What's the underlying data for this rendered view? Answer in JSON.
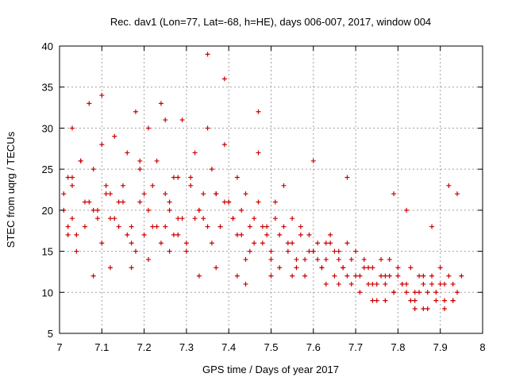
{
  "chart_data": {
    "type": "scatter",
    "title": "Rec. dav1 (Lon=77, Lat=-68, h=HE), days 006-007, 2017, window 004",
    "xlabel": "GPS time / Days of year 2017",
    "ylabel": "STEC from uqrg / TECUs",
    "xlim": [
      7,
      8
    ],
    "ylim": [
      5,
      40
    ],
    "xticks": [
      7,
      7.1,
      7.2,
      7.3,
      7.4,
      7.5,
      7.6,
      7.7,
      7.8,
      7.9,
      8
    ],
    "yticks": [
      5,
      10,
      15,
      20,
      25,
      30,
      35,
      40
    ],
    "xtick_labels": [
      "7",
      "7.1",
      "7.2",
      "7.3",
      "7.4",
      "7.5",
      "7.6",
      "7.7",
      "7.8",
      "7.9",
      "8"
    ],
    "ytick_labels": [
      "5",
      "10",
      "15",
      "20",
      "25",
      "30",
      "35",
      "40"
    ],
    "grid": true,
    "marker": "plus",
    "color": "#cc0000",
    "x": [
      7.01,
      7.01,
      7.02,
      7.02,
      7.03,
      7.03,
      7.04,
      7.05,
      7.06,
      7.07,
      7.08,
      7.09,
      7.1,
      7.11,
      7.12,
      7.13,
      7.14,
      7.15,
      7.16,
      7.17,
      7.18,
      7.19,
      7.2,
      7.21,
      7.22,
      7.23,
      7.24,
      7.25,
      7.26,
      7.27,
      7.28,
      7.29,
      7.3,
      7.31,
      7.32,
      7.33,
      7.34,
      7.35,
      7.36,
      7.37,
      7.38,
      7.39,
      7.4,
      7.41,
      7.42,
      7.43,
      7.44,
      7.45,
      7.46,
      7.47,
      7.48,
      7.49,
      7.5,
      7.51,
      7.52,
      7.53,
      7.54,
      7.55,
      7.56,
      7.57,
      7.58,
      7.59,
      7.6,
      7.61,
      7.62,
      7.63,
      7.64,
      7.65,
      7.66,
      7.67,
      7.68,
      7.69,
      7.7,
      7.71,
      7.72,
      7.73,
      7.74,
      7.75,
      7.76,
      7.77,
      7.78,
      7.79,
      7.8,
      7.81,
      7.82,
      7.83,
      7.84,
      7.85,
      7.86,
      7.87,
      7.88,
      7.89,
      7.9,
      7.91,
      7.92,
      7.93,
      7.94,
      7.95,
      7.02,
      7.04,
      7.06,
      7.08,
      7.1,
      7.12,
      7.14,
      7.16,
      7.18,
      7.2,
      7.22,
      7.24,
      7.26,
      7.28,
      7.3,
      7.32,
      7.34,
      7.36,
      7.38,
      7.4,
      7.42,
      7.44,
      7.46,
      7.48,
      7.5,
      7.52,
      7.54,
      7.56,
      7.58,
      7.6,
      7.62,
      7.64,
      7.66,
      7.68,
      7.7,
      7.72,
      7.74,
      7.76,
      7.78,
      7.8,
      7.82,
      7.84,
      7.86,
      7.88,
      7.9,
      7.92,
      7.94,
      7.03,
      7.05,
      7.07,
      7.09,
      7.11,
      7.13,
      7.15,
      7.17,
      7.19,
      7.21,
      7.23,
      7.25,
      7.27,
      7.29,
      7.31,
      7.33,
      7.35,
      7.37,
      7.39,
      7.41,
      7.43,
      7.45,
      7.47,
      7.49,
      7.51,
      7.53,
      7.55,
      7.57,
      7.59,
      7.61,
      7.63,
      7.65,
      7.67,
      7.69,
      7.71,
      7.73,
      7.75,
      7.77,
      7.79,
      7.81,
      7.83,
      7.85,
      7.87,
      7.89,
      7.91,
      7.93,
      7.03,
      7.1,
      7.19,
      7.25,
      7.28,
      7.35,
      7.39,
      7.47,
      7.6,
      7.68,
      7.79,
      7.82,
      7.88,
      7.12,
      7.21,
      7.33,
      7.44,
      7.55,
      7.66,
      7.77,
      7.86,
      7.93,
      7.08,
      7.17,
      7.26,
      7.37,
      7.42,
      7.5,
      7.63,
      7.74,
      7.84,
      7.91
    ],
    "y": [
      20,
      22,
      18,
      24,
      19,
      30,
      17,
      26,
      21,
      33,
      25,
      19,
      34,
      23,
      22,
      29,
      18,
      21,
      27,
      16,
      32,
      25,
      17,
      30,
      23,
      26,
      33,
      18,
      21,
      24,
      19,
      31,
      16,
      23,
      27,
      20,
      19,
      39,
      25,
      22,
      18,
      36,
      21,
      19,
      24,
      17,
      22,
      15,
      19,
      32,
      16,
      18,
      14,
      21,
      17,
      23,
      15,
      19,
      13,
      18,
      14,
      17,
      15,
      16,
      13,
      14,
      17,
      12,
      15,
      13,
      16,
      11,
      12,
      10,
      14,
      11,
      13,
      9,
      12,
      11,
      14,
      10,
      12,
      11,
      10,
      13,
      9,
      12,
      11,
      10,
      12,
      10,
      11,
      9,
      12,
      11,
      10,
      12,
      17,
      15,
      18,
      20,
      16,
      19,
      21,
      17,
      15,
      22,
      18,
      16,
      20,
      17,
      15,
      19,
      22,
      16,
      18,
      21,
      17,
      14,
      16,
      18,
      15,
      13,
      16,
      14,
      12,
      15,
      13,
      16,
      14,
      12,
      15,
      13,
      11,
      14,
      12,
      13,
      11,
      10,
      12,
      11,
      13,
      23,
      22,
      24,
      26,
      21,
      20,
      22,
      19,
      23,
      18,
      21,
      20,
      18,
      22,
      17,
      19,
      24,
      20,
      18,
      22,
      21,
      19,
      20,
      18,
      21,
      17,
      19,
      18,
      16,
      17,
      15,
      14,
      16,
      15,
      13,
      14,
      12,
      13,
      11,
      12,
      10,
      11,
      9,
      10,
      8,
      9,
      11,
      9,
      23,
      28,
      26,
      31,
      24,
      30,
      28,
      27,
      26,
      24,
      22,
      20,
      18,
      13,
      14,
      12,
      11,
      12,
      11,
      9,
      8,
      9,
      12,
      13,
      15,
      13,
      12,
      12,
      11,
      9,
      8,
      8
    ],
    "annotations": []
  }
}
